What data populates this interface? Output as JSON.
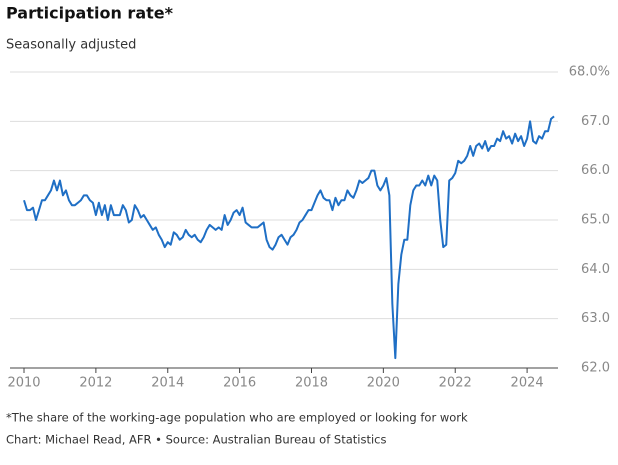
{
  "chart_data": {
    "type": "line",
    "title": "Participation rate*",
    "subtitle": "Seasonally adjusted",
    "footnote": "*The share of the working-age population who are employed or looking for work",
    "source": "Chart: Michael Read, AFR • Source: Australian Bureau of Statistics",
    "x": [
      2010,
      2010.083,
      2010.167,
      2010.25,
      2010.333,
      2010.417,
      2010.5,
      2010.583,
      2010.667,
      2010.75,
      2010.833,
      2010.917,
      2011,
      2011.083,
      2011.167,
      2011.25,
      2011.333,
      2011.417,
      2011.5,
      2011.583,
      2011.667,
      2011.75,
      2011.833,
      2011.917,
      2012,
      2012.083,
      2012.167,
      2012.25,
      2012.333,
      2012.417,
      2012.5,
      2012.583,
      2012.667,
      2012.75,
      2012.833,
      2012.917,
      2013,
      2013.083,
      2013.167,
      2013.25,
      2013.333,
      2013.417,
      2013.5,
      2013.583,
      2013.667,
      2013.75,
      2013.833,
      2013.917,
      2014,
      2014.083,
      2014.167,
      2014.25,
      2014.333,
      2014.417,
      2014.5,
      2014.583,
      2014.667,
      2014.75,
      2014.833,
      2014.917,
      2015,
      2015.083,
      2015.167,
      2015.25,
      2015.333,
      2015.417,
      2015.5,
      2015.583,
      2015.667,
      2015.75,
      2015.833,
      2015.917,
      2016,
      2016.083,
      2016.167,
      2016.25,
      2016.333,
      2016.417,
      2016.5,
      2016.583,
      2016.667,
      2016.75,
      2016.833,
      2016.917,
      2017,
      2017.083,
      2017.167,
      2017.25,
      2017.333,
      2017.417,
      2017.5,
      2017.583,
      2017.667,
      2017.75,
      2017.833,
      2017.917,
      2018,
      2018.083,
      2018.167,
      2018.25,
      2018.333,
      2018.417,
      2018.5,
      2018.583,
      2018.667,
      2018.75,
      2018.833,
      2018.917,
      2019,
      2019.083,
      2019.167,
      2019.25,
      2019.333,
      2019.417,
      2019.5,
      2019.583,
      2019.667,
      2019.75,
      2019.833,
      2019.917,
      2020,
      2020.083,
      2020.167,
      2020.25,
      2020.333,
      2020.417,
      2020.5,
      2020.583,
      2020.667,
      2020.75,
      2020.833,
      2020.917,
      2021,
      2021.083,
      2021.167,
      2021.25,
      2021.333,
      2021.417,
      2021.5,
      2021.583,
      2021.667,
      2021.75,
      2021.833,
      2021.917,
      2022,
      2022.083,
      2022.167,
      2022.25,
      2022.333,
      2022.417,
      2022.5,
      2022.583,
      2022.667,
      2022.75,
      2022.833,
      2022.917,
      2023,
      2023.083,
      2023.167,
      2023.25,
      2023.333,
      2023.417,
      2023.5,
      2023.583,
      2023.667,
      2023.75,
      2023.833,
      2023.917,
      2024,
      2024.083,
      2024.167,
      2024.25,
      2024.333,
      2024.417,
      2024.5,
      2024.583,
      2024.667,
      2024.75
    ],
    "series": [
      {
        "color": "#1f6fc5",
        "values": [
          65.4,
          65.2,
          65.2,
          65.25,
          65.0,
          65.2,
          65.4,
          65.4,
          65.5,
          65.6,
          65.8,
          65.6,
          65.8,
          65.5,
          65.6,
          65.4,
          65.3,
          65.3,
          65.35,
          65.4,
          65.5,
          65.5,
          65.4,
          65.35,
          65.1,
          65.35,
          65.1,
          65.3,
          65.0,
          65.3,
          65.1,
          65.1,
          65.1,
          65.3,
          65.2,
          64.95,
          65.0,
          65.3,
          65.2,
          65.05,
          65.1,
          65.0,
          64.9,
          64.8,
          64.85,
          64.7,
          64.6,
          64.45,
          64.55,
          64.5,
          64.75,
          64.7,
          64.6,
          64.65,
          64.8,
          64.7,
          64.65,
          64.7,
          64.6,
          64.55,
          64.65,
          64.8,
          64.9,
          64.85,
          64.8,
          64.85,
          64.8,
          65.1,
          64.9,
          65.0,
          65.15,
          65.2,
          65.1,
          65.25,
          64.95,
          64.9,
          64.85,
          64.85,
          64.85,
          64.9,
          64.95,
          64.6,
          64.45,
          64.4,
          64.5,
          64.65,
          64.7,
          64.6,
          64.5,
          64.65,
          64.7,
          64.8,
          64.95,
          65.0,
          65.1,
          65.2,
          65.2,
          65.35,
          65.5,
          65.6,
          65.45,
          65.4,
          65.4,
          65.2,
          65.45,
          65.3,
          65.4,
          65.4,
          65.6,
          65.5,
          65.45,
          65.6,
          65.8,
          65.75,
          65.8,
          65.85,
          66.0,
          66.0,
          65.7,
          65.6,
          65.7,
          65.85,
          65.5,
          63.3,
          62.2,
          63.7,
          64.3,
          64.6,
          64.6,
          65.3,
          65.6,
          65.7,
          65.7,
          65.8,
          65.7,
          65.9,
          65.7,
          65.9,
          65.8,
          65.0,
          64.45,
          64.5,
          65.8,
          65.85,
          65.95,
          66.2,
          66.15,
          66.2,
          66.3,
          66.5,
          66.3,
          66.5,
          66.55,
          66.45,
          66.6,
          66.4,
          66.5,
          66.5,
          66.65,
          66.6,
          66.8,
          66.65,
          66.7,
          66.55,
          66.75,
          66.6,
          66.7,
          66.5,
          66.65,
          67.0,
          66.6,
          66.55,
          66.7,
          66.65,
          66.8,
          66.8,
          67.05,
          67.1
        ]
      }
    ],
    "xlim": [
      2009.61,
      2024.86
    ],
    "xticks": [
      2010,
      2012,
      2014,
      2016,
      2018,
      2020,
      2022,
      2024
    ],
    "ylim": [
      62,
      68
    ],
    "yticks": [
      {
        "value": 62,
        "label": "62.0"
      },
      {
        "value": 63,
        "label": "63.0"
      },
      {
        "value": 64,
        "label": "64.0"
      },
      {
        "value": 65,
        "label": "65.0"
      },
      {
        "value": 66,
        "label": "66.0"
      },
      {
        "value": 67,
        "label": "67.0"
      },
      {
        "value": 68,
        "label": "68.0%"
      }
    ],
    "grid": true
  }
}
